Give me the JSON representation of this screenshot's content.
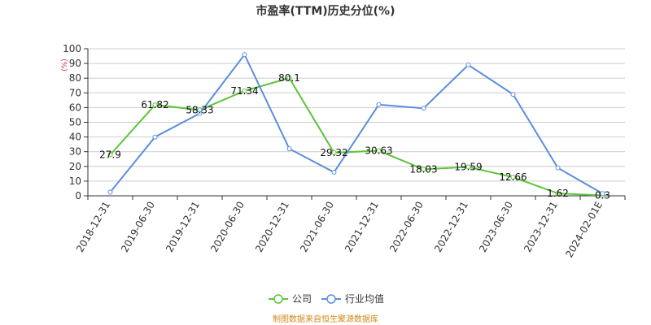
{
  "chart_data": {
    "type": "line",
    "title": "市盈率(TTM)历史分位(%)",
    "unit_label": "(%)",
    "categories": [
      "2018-12-31",
      "2019-06-30",
      "2019-12-31",
      "2020-06-30",
      "2020-12-31",
      "2021-06-30",
      "2021-12-31",
      "2022-06-30",
      "2022-12-31",
      "2023-06-30",
      "2023-12-31",
      "2024-02-01E"
    ],
    "ylim": [
      0,
      100
    ],
    "yticks": [
      0,
      10,
      20,
      30,
      40,
      50,
      60,
      70,
      80,
      90,
      100
    ],
    "grid": true,
    "legend_position": "bottom-center",
    "series": [
      {
        "name": "公司",
        "color": "#5cc43a",
        "values": [
          27.9,
          61.82,
          58.33,
          71.34,
          80.1,
          29.32,
          30.63,
          18.03,
          19.59,
          12.66,
          1.62,
          0.3
        ],
        "labels": [
          "27.9",
          "61.82",
          "58.33",
          "71.34",
          "80.1",
          "29.32",
          "30.63",
          "18.03",
          "19.59",
          "12.66",
          "1.62",
          "0.3"
        ],
        "show_labels": true
      },
      {
        "name": "行业均值",
        "color": "#5b8fdc",
        "values": [
          2.5,
          40,
          56,
          96,
          32,
          16,
          62,
          59.5,
          89,
          69,
          19,
          1.5
        ],
        "show_labels": false
      }
    ]
  },
  "source_note": "制图数据来自恒生聚源数据库"
}
